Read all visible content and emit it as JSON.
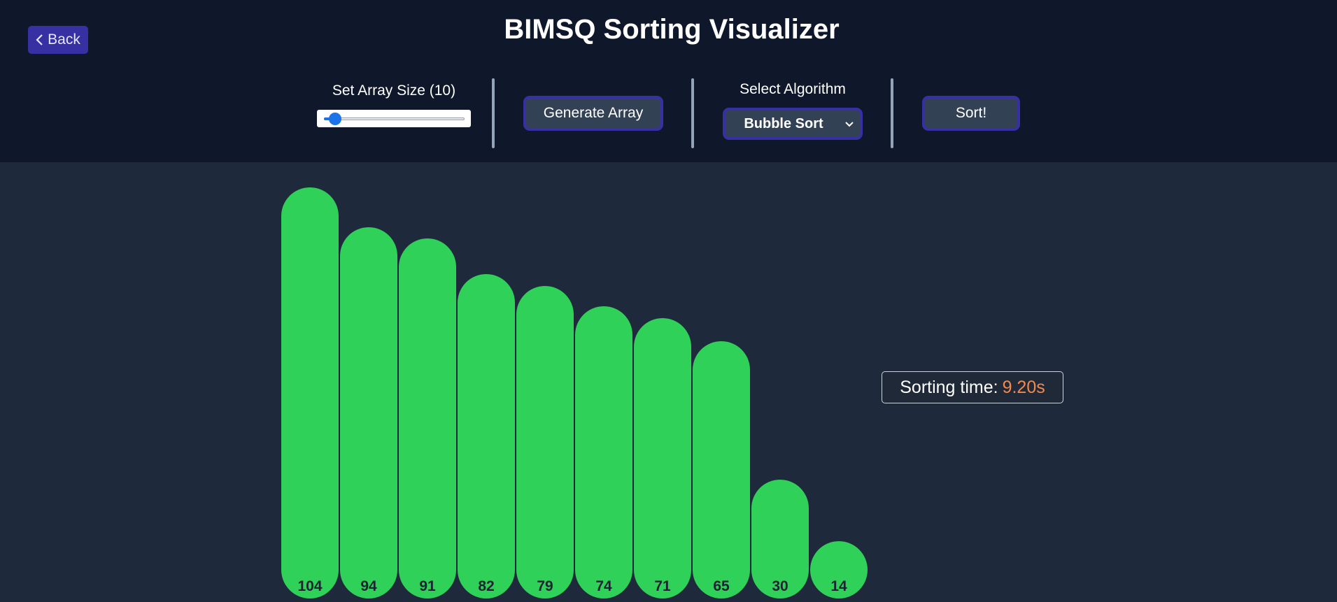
{
  "header": {
    "back_label": "Back",
    "title": "BIMSQ Sorting Visualizer"
  },
  "controls": {
    "array_size_label": "Set Array Size (10)",
    "array_size_slider_fraction": 0.08,
    "generate_label": "Generate Array",
    "algorithm_label": "Select Algorithm",
    "algorithm_selected": "Bubble Sort",
    "sort_label": "Sort!"
  },
  "result": {
    "sorting_time_label": "Sorting time:",
    "sorting_time_value": "9.20s"
  },
  "colors": {
    "header_bg": "#0f172a",
    "page_bg": "#1e293b",
    "accent": "#3730a3",
    "bar": "#30d158",
    "time_value": "#f4894d",
    "slider": "#1a73e8"
  },
  "chart_data": {
    "type": "bar",
    "values": [
      104,
      94,
      91,
      82,
      79,
      74,
      71,
      65,
      30,
      14
    ]
  },
  "icons": [
    "chevron-left-icon",
    "chevron-down-icon"
  ]
}
